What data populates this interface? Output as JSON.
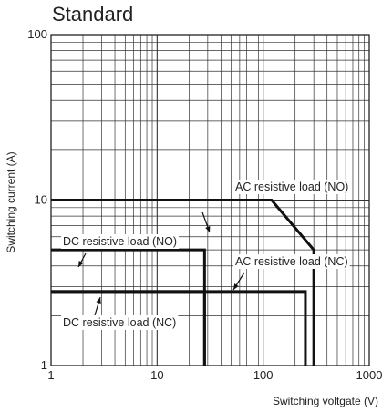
{
  "chart_data": {
    "type": "line",
    "title": "Standard",
    "xlabel": "Switching voltgate (V)",
    "ylabel": "Switching current (A)",
    "x_scale": "log",
    "y_scale": "log",
    "xlim": [
      1,
      1000
    ],
    "ylim": [
      1,
      100
    ],
    "grid": true,
    "x_ticks": [
      "1",
      "10",
      "100",
      "1000"
    ],
    "y_ticks": [
      "1",
      "10",
      "100"
    ],
    "series": [
      {
        "name": "AC resistive load (NO)",
        "x": [
          1,
          120,
          300,
          300
        ],
        "y": [
          10,
          10,
          5,
          1
        ]
      },
      {
        "name": "DC resistive load (NO)",
        "x": [
          1,
          28,
          28
        ],
        "y": [
          5,
          5,
          1
        ]
      },
      {
        "name": "AC resistive load (NC)",
        "x": [
          1,
          250,
          250
        ],
        "y": [
          2.8,
          2.8,
          1
        ]
      },
      {
        "name": "DC resistive load (NC)",
        "x": [
          1,
          28,
          28
        ],
        "y": [
          2.8,
          2.8,
          1
        ]
      }
    ]
  }
}
